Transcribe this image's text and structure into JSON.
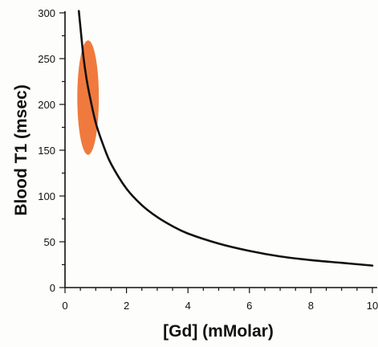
{
  "chart_data": {
    "type": "line",
    "title": "",
    "xlabel": "[Gd] (mMolar)",
    "ylabel": "Blood T1 (msec)",
    "xlim": [
      0,
      10
    ],
    "ylim": [
      0,
      300
    ],
    "x_ticks": [
      "0",
      "2",
      "4",
      "6",
      "8",
      "10"
    ],
    "y_ticks": [
      "0",
      "50",
      "100",
      "150",
      "200",
      "250",
      "300"
    ],
    "grid": false,
    "legend": "none",
    "series": [
      {
        "color": "#111111",
        "x": [
          0.45,
          0.5,
          0.6,
          0.7,
          0.8,
          1.0,
          1.25,
          1.5,
          2.0,
          2.5,
          3.0,
          3.5,
          4.0,
          5.0,
          6.0,
          7.0,
          8.0,
          9.0,
          10.0
        ],
        "y": [
          302,
          285,
          252,
          228,
          210,
          180,
          155,
          135,
          108,
          90,
          77,
          67,
          59,
          48,
          40,
          34,
          30,
          27,
          24
        ]
      }
    ],
    "highlight_region": {
      "shape": "ellipse",
      "color": "#f07a3d",
      "x_range": [
        0.4,
        1.1
      ],
      "y_range": [
        145,
        270
      ]
    }
  }
}
